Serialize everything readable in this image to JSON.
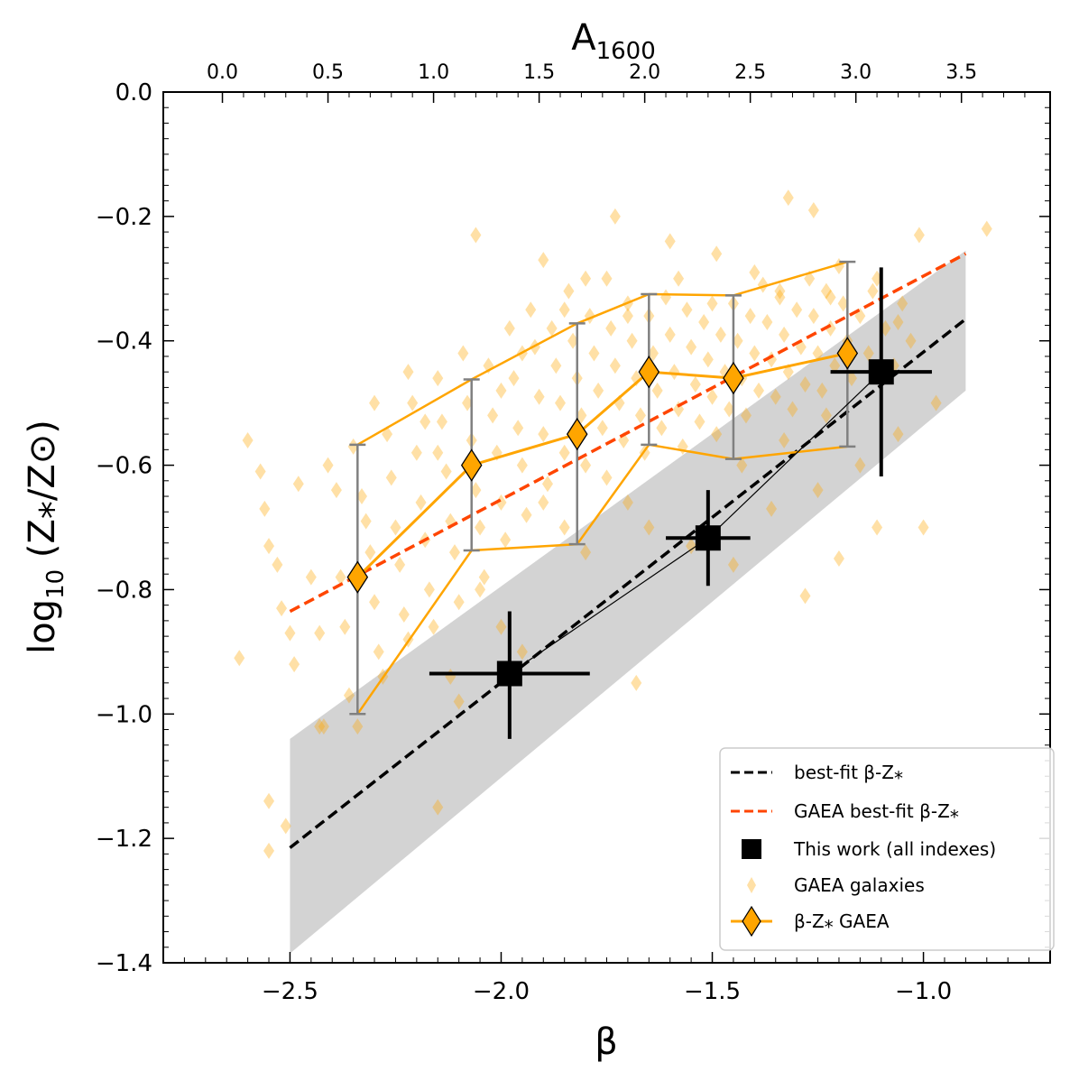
{
  "chart_data": {
    "type": "scatter",
    "xlabel": "β",
    "ylabel": "log₁₀ (Z⁎/Z⊙)",
    "ylabel_parts": {
      "log": "log",
      "sub": "10",
      "expr": " (Z⁎/Z⊙)"
    },
    "top_xlabel": "A₁₆₀₀",
    "top_xlabel_parts": {
      "base": "A",
      "sub": "1600"
    },
    "top_axis_color": "#0000ff",
    "xlim": [
      -2.8,
      -0.7
    ],
    "ylim": [
      -1.4,
      0.0
    ],
    "x_ticks": [
      {
        "value": -2.5,
        "label": "−2.5"
      },
      {
        "value": -2.0,
        "label": "−2.0"
      },
      {
        "value": -1.5,
        "label": "−1.5"
      },
      {
        "value": -1.0,
        "label": "−1.0"
      }
    ],
    "y_ticks": [
      {
        "value": 0.0,
        "label": "0.0"
      },
      {
        "value": -0.2,
        "label": "−0.2"
      },
      {
        "value": -0.4,
        "label": "−0.4"
      },
      {
        "value": -0.6,
        "label": "−0.6"
      },
      {
        "value": -0.8,
        "label": "−0.8"
      },
      {
        "value": -1.0,
        "label": "−1.0"
      },
      {
        "value": -1.2,
        "label": "−1.2"
      },
      {
        "value": -1.4,
        "label": "−1.4"
      }
    ],
    "top_ticks": [
      {
        "beta": -2.66,
        "label": "0.0"
      },
      {
        "beta": -2.41,
        "label": "0.5"
      },
      {
        "beta": -2.16,
        "label": "1.0"
      },
      {
        "beta": -1.91,
        "label": "1.5"
      },
      {
        "beta": -1.66,
        "label": "2.0"
      },
      {
        "beta": -1.41,
        "label": "2.5"
      },
      {
        "beta": -1.16,
        "label": "3.0"
      },
      {
        "beta": -0.91,
        "label": "3.5"
      }
    ],
    "best_fit": {
      "name": "best-fit β-Z⁎",
      "x": [
        -2.5,
        -0.9
      ],
      "y": [
        -1.215,
        -0.365
      ],
      "color": "#000000"
    },
    "gaea_best_fit": {
      "name": "GAEA best-fit β-Z⁎",
      "x": [
        -2.5,
        -0.9
      ],
      "y": [
        -0.835,
        -0.26
      ],
      "color": "#ff4500"
    },
    "shaded_band": {
      "x": [
        -2.5,
        -0.9
      ],
      "upper": [
        -1.04,
        -0.255
      ],
      "lower": [
        -1.385,
        -0.48
      ],
      "color": "#d3d3d3"
    },
    "this_work": {
      "name": "This work (all indexes)",
      "color": "#000000",
      "points": [
        {
          "x": -1.98,
          "y": -0.935,
          "xerr": 0.19,
          "yerr_up": 0.1,
          "yerr_low": 0.105
        },
        {
          "x": -1.51,
          "y": -0.717,
          "xerr": 0.1,
          "yerr_up": 0.077,
          "yerr_low": 0.077
        },
        {
          "x": -1.1,
          "y": -0.45,
          "xerr": 0.12,
          "yerr_up": 0.168,
          "yerr_low": 0.168
        }
      ]
    },
    "gaea_median": {
      "name": "β-Z⁎ GAEA",
      "color": "#ffa500",
      "errorbar_color": "#808080",
      "x": [
        -2.34,
        -2.07,
        -1.82,
        -1.65,
        -1.45,
        -1.18
      ],
      "y": [
        -0.78,
        -0.6,
        -0.55,
        -0.45,
        -0.46,
        -0.42
      ],
      "upper": [
        -0.567,
        -0.462,
        -0.372,
        -0.325,
        -0.327,
        -0.273
      ],
      "lower": [
        -1.0,
        -0.737,
        -0.727,
        -0.567,
        -0.59,
        -0.57
      ]
    },
    "gaea_galaxies": {
      "name": "GAEA galaxies",
      "color": "#ffa500",
      "points": [
        [
          -2.62,
          -0.91
        ],
        [
          -2.6,
          -0.56
        ],
        [
          -2.57,
          -0.61
        ],
        [
          -2.56,
          -0.67
        ],
        [
          -2.55,
          -0.73
        ],
        [
          -2.53,
          -0.76
        ],
        [
          -2.52,
          -0.83
        ],
        [
          -2.5,
          -0.87
        ],
        [
          -2.49,
          -0.92
        ],
        [
          -2.48,
          -0.63
        ],
        [
          -2.45,
          -0.78
        ],
        [
          -2.43,
          -0.87
        ],
        [
          -2.42,
          -1.02
        ],
        [
          -2.41,
          -0.6
        ],
        [
          -2.39,
          -0.64
        ],
        [
          -2.38,
          -0.78
        ],
        [
          -2.37,
          -0.86
        ],
        [
          -2.36,
          -0.97
        ],
        [
          -2.35,
          -0.57
        ],
        [
          -2.33,
          -0.65
        ],
        [
          -2.32,
          -0.69
        ],
        [
          -2.31,
          -0.74
        ],
        [
          -2.3,
          -0.82
        ],
        [
          -2.29,
          -0.9
        ],
        [
          -2.28,
          -0.94
        ],
        [
          -2.27,
          -0.55
        ],
        [
          -2.26,
          -0.62
        ],
        [
          -2.25,
          -0.7
        ],
        [
          -2.24,
          -0.76
        ],
        [
          -2.23,
          -0.84
        ],
        [
          -2.22,
          -0.88
        ],
        [
          -2.21,
          -0.5
        ],
        [
          -2.2,
          -0.58
        ],
        [
          -2.19,
          -0.66
        ],
        [
          -2.18,
          -0.72
        ],
        [
          -2.17,
          -0.8
        ],
        [
          -2.16,
          -0.86
        ],
        [
          -2.15,
          -0.46
        ],
        [
          -2.14,
          -0.53
        ],
        [
          -2.13,
          -0.61
        ],
        [
          -2.12,
          -0.69
        ],
        [
          -2.11,
          -0.74
        ],
        [
          -2.1,
          -0.82
        ],
        [
          -2.09,
          -0.42
        ],
        [
          -2.08,
          -0.5
        ],
        [
          -2.07,
          -0.56
        ],
        [
          -2.06,
          -0.64
        ],
        [
          -2.05,
          -0.7
        ],
        [
          -2.04,
          -0.78
        ],
        [
          -2.03,
          -0.44
        ],
        [
          -2.02,
          -0.52
        ],
        [
          -2.01,
          -0.58
        ],
        [
          -2.0,
          -0.66
        ],
        [
          -1.99,
          -0.72
        ],
        [
          -1.98,
          -0.38
        ],
        [
          -1.97,
          -0.46
        ],
        [
          -1.96,
          -0.54
        ],
        [
          -1.95,
          -0.6
        ],
        [
          -1.94,
          -0.68
        ],
        [
          -1.93,
          -0.35
        ],
        [
          -1.92,
          -0.41
        ],
        [
          -1.91,
          -0.49
        ],
        [
          -1.9,
          -0.55
        ],
        [
          -1.89,
          -0.63
        ],
        [
          -1.88,
          -0.38
        ],
        [
          -1.87,
          -0.44
        ],
        [
          -1.86,
          -0.5
        ],
        [
          -1.85,
          -0.58
        ],
        [
          -1.84,
          -0.32
        ],
        [
          -1.83,
          -0.4
        ],
        [
          -1.82,
          -0.46
        ],
        [
          -1.81,
          -0.52
        ],
        [
          -1.8,
          -0.6
        ],
        [
          -1.79,
          -0.36
        ],
        [
          -1.78,
          -0.42
        ],
        [
          -1.77,
          -0.48
        ],
        [
          -1.76,
          -0.54
        ],
        [
          -1.75,
          -0.3
        ],
        [
          -1.74,
          -0.38
        ],
        [
          -1.73,
          -0.44
        ],
        [
          -1.72,
          -0.5
        ],
        [
          -1.71,
          -0.56
        ],
        [
          -1.7,
          -0.34
        ],
        [
          -1.69,
          -0.4
        ],
        [
          -1.68,
          -0.46
        ],
        [
          -1.67,
          -0.52
        ],
        [
          -1.66,
          -0.58
        ],
        [
          -1.65,
          -0.36
        ],
        [
          -1.64,
          -0.42
        ],
        [
          -1.63,
          -0.48
        ],
        [
          -1.62,
          -0.54
        ],
        [
          -1.61,
          -0.33
        ],
        [
          -1.6,
          -0.39
        ],
        [
          -1.59,
          -0.45
        ],
        [
          -1.58,
          -0.51
        ],
        [
          -1.57,
          -0.57
        ],
        [
          -1.56,
          -0.35
        ],
        [
          -1.55,
          -0.41
        ],
        [
          -1.54,
          -0.47
        ],
        [
          -1.53,
          -0.53
        ],
        [
          -1.52,
          -0.37
        ],
        [
          -1.51,
          -0.43
        ],
        [
          -1.5,
          -0.49
        ],
        [
          -1.49,
          -0.55
        ],
        [
          -1.48,
          -0.39
        ],
        [
          -1.47,
          -0.45
        ],
        [
          -1.46,
          -0.51
        ],
        [
          -1.45,
          -0.34
        ],
        [
          -1.44,
          -0.4
        ],
        [
          -1.43,
          -0.46
        ],
        [
          -1.42,
          -0.52
        ],
        [
          -1.41,
          -0.36
        ],
        [
          -1.4,
          -0.42
        ],
        [
          -1.39,
          -0.48
        ],
        [
          -1.38,
          -0.31
        ],
        [
          -1.37,
          -0.37
        ],
        [
          -1.36,
          -0.43
        ],
        [
          -1.35,
          -0.49
        ],
        [
          -1.34,
          -0.33
        ],
        [
          -1.33,
          -0.39
        ],
        [
          -1.32,
          -0.45
        ],
        [
          -1.31,
          -0.51
        ],
        [
          -1.3,
          -0.35
        ],
        [
          -1.29,
          -0.41
        ],
        [
          -1.28,
          -0.47
        ],
        [
          -1.27,
          -0.3
        ],
        [
          -1.26,
          -0.36
        ],
        [
          -1.25,
          -0.42
        ],
        [
          -1.24,
          -0.48
        ],
        [
          -1.23,
          -0.32
        ],
        [
          -1.22,
          -0.38
        ],
        [
          -1.21,
          -0.44
        ],
        [
          -1.2,
          -0.28
        ],
        [
          -1.19,
          -0.34
        ],
        [
          -1.18,
          -0.4
        ],
        [
          -1.17,
          -0.46
        ],
        [
          -1.15,
          -0.36
        ],
        [
          -1.13,
          -0.42
        ],
        [
          -1.11,
          -0.3
        ],
        [
          -1.09,
          -0.38
        ],
        [
          -1.07,
          -0.44
        ],
        [
          -1.05,
          -0.34
        ],
        [
          -1.03,
          -0.4
        ],
        [
          -1.01,
          -0.23
        ],
        [
          -1.73,
          -0.2
        ],
        [
          -1.6,
          -0.24
        ],
        [
          -1.32,
          -0.17
        ],
        [
          -1.26,
          -0.19
        ],
        [
          -2.06,
          -0.23
        ],
        [
          -1.9,
          -0.27
        ],
        [
          -1.49,
          -0.26
        ],
        [
          -0.85,
          -0.22
        ],
        [
          -2.55,
          -1.14
        ],
        [
          -2.55,
          -1.22
        ],
        [
          -2.51,
          -1.18
        ],
        [
          -2.43,
          -1.02
        ],
        [
          -2.34,
          -1.02
        ],
        [
          -2.15,
          -1.15
        ],
        [
          -1.68,
          -0.95
        ],
        [
          -1.28,
          -0.81
        ],
        [
          -1.2,
          -0.75
        ],
        [
          -1.11,
          -0.7
        ],
        [
          -1.0,
          -0.7
        ],
        [
          -1.55,
          -0.73
        ],
        [
          -1.45,
          -0.76
        ],
        [
          -1.36,
          -0.67
        ],
        [
          -1.25,
          -0.64
        ],
        [
          -1.15,
          -0.6
        ],
        [
          -1.06,
          -0.55
        ],
        [
          -0.97,
          -0.5
        ],
        [
          -1.43,
          -0.6
        ],
        [
          -1.33,
          -0.56
        ],
        [
          -1.23,
          -0.52
        ],
        [
          -2.05,
          -0.8
        ],
        [
          -2.0,
          -0.86
        ],
        [
          -1.95,
          -0.9
        ],
        [
          -2.12,
          -0.94
        ],
        [
          -2.1,
          -0.98
        ],
        [
          -1.9,
          -0.66
        ],
        [
          -1.85,
          -0.7
        ],
        [
          -1.8,
          -0.74
        ],
        [
          -1.75,
          -0.62
        ],
        [
          -1.7,
          -0.66
        ],
        [
          -1.65,
          -0.7
        ],
        [
          -2.3,
          -0.5
        ],
        [
          -2.22,
          -0.45
        ],
        [
          -2.18,
          -0.53
        ],
        [
          -2.15,
          -0.58
        ],
        [
          -2.0,
          -0.48
        ],
        [
          -1.95,
          -0.42
        ],
        [
          -1.85,
          -0.35
        ],
        [
          -1.8,
          -0.3
        ],
        [
          -1.7,
          -0.36
        ],
        [
          -1.58,
          -0.3
        ],
        [
          -1.5,
          -0.34
        ],
        [
          -1.4,
          -0.29
        ],
        [
          -1.34,
          -0.32
        ],
        [
          -1.22,
          -0.33
        ],
        [
          -1.12,
          -0.32
        ],
        [
          -1.06,
          -0.37
        ]
      ]
    },
    "legend": {
      "position": "lower-right",
      "entries": [
        {
          "label": "best-fit β-Z⁎",
          "style": "black-dashed"
        },
        {
          "label": "GAEA best-fit β-Z⁎",
          "style": "orange-dashed"
        },
        {
          "label": "This work (all indexes)",
          "style": "black-square"
        },
        {
          "label": "GAEA galaxies",
          "style": "light-diamond"
        },
        {
          "label": "β-Z⁎  GAEA",
          "style": "orange-diamond-line"
        }
      ]
    }
  }
}
